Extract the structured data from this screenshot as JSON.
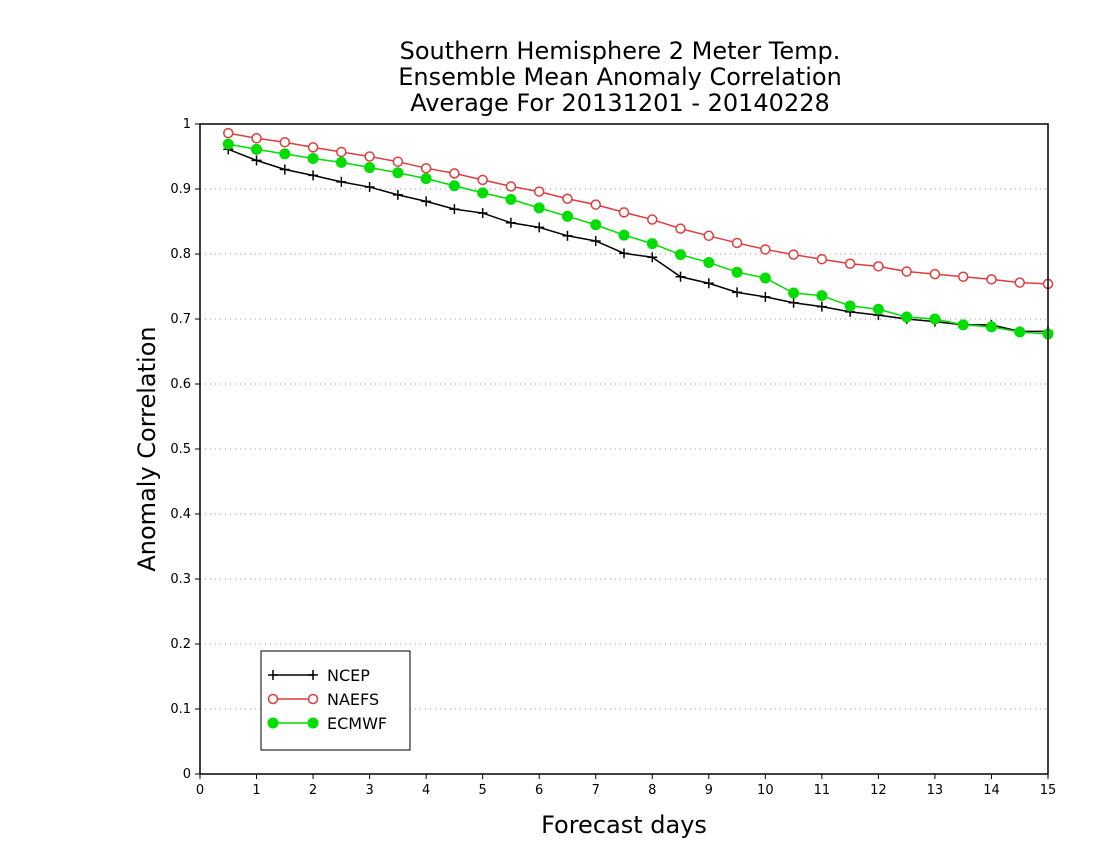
{
  "chart_data": {
    "type": "line",
    "title_lines": [
      "Southern Hemisphere 2 Meter Temp.",
      "Ensemble Mean Anomaly Correlation",
      "Average For 20131201 - 20140228"
    ],
    "xlabel": "Forecast days",
    "ylabel": "Anomaly Correlation",
    "xlim": [
      0,
      15
    ],
    "ylim": [
      0,
      1
    ],
    "x_ticks": [
      "0",
      "1",
      "2",
      "3",
      "4",
      "5",
      "6",
      "7",
      "8",
      "9",
      "10",
      "11",
      "12",
      "13",
      "14",
      "15"
    ],
    "y_ticks": [
      "0",
      "0.1",
      "0.2",
      "0.3",
      "0.4",
      "0.5",
      "0.6",
      "0.7",
      "0.8",
      "0.9",
      "1"
    ],
    "grid": "horizontal dotted",
    "legend_position": "bottom-left",
    "x": [
      0.5,
      1,
      1.5,
      2,
      2.5,
      3,
      3.5,
      4,
      4.5,
      5,
      5.5,
      6,
      6.5,
      7,
      7.5,
      8,
      8.5,
      9,
      9.5,
      10,
      10.5,
      11,
      11.5,
      12,
      12.5,
      13,
      13.5,
      14,
      14.5,
      15
    ],
    "series": [
      {
        "name": "NCEP",
        "color": "#000000",
        "marker": "plus",
        "values": [
          0.961,
          0.944,
          0.93,
          0.921,
          0.911,
          0.903,
          0.891,
          0.881,
          0.869,
          0.863,
          0.848,
          0.841,
          0.828,
          0.82,
          0.801,
          0.795,
          0.765,
          0.755,
          0.741,
          0.734,
          0.725,
          0.719,
          0.711,
          0.706,
          0.7,
          0.696,
          0.691,
          0.691,
          0.681,
          0.681
        ]
      },
      {
        "name": "NAEFS",
        "color": "#e03c3c",
        "marker": "open-circle",
        "values": [
          0.986,
          0.978,
          0.972,
          0.964,
          0.957,
          0.95,
          0.942,
          0.932,
          0.924,
          0.914,
          0.904,
          0.896,
          0.885,
          0.876,
          0.864,
          0.853,
          0.839,
          0.828,
          0.817,
          0.807,
          0.799,
          0.792,
          0.785,
          0.781,
          0.773,
          0.769,
          0.765,
          0.761,
          0.756,
          0.754
        ]
      },
      {
        "name": "ECMWF",
        "color": "#00dd00",
        "marker": "filled-circle",
        "values": [
          0.969,
          0.961,
          0.954,
          0.947,
          0.941,
          0.933,
          0.925,
          0.916,
          0.905,
          0.894,
          0.884,
          0.871,
          0.858,
          0.845,
          0.829,
          0.816,
          0.799,
          0.787,
          0.772,
          0.763,
          0.74,
          0.736,
          0.72,
          0.715,
          0.703,
          0.7,
          0.691,
          0.688,
          0.68,
          0.677
        ]
      }
    ]
  }
}
